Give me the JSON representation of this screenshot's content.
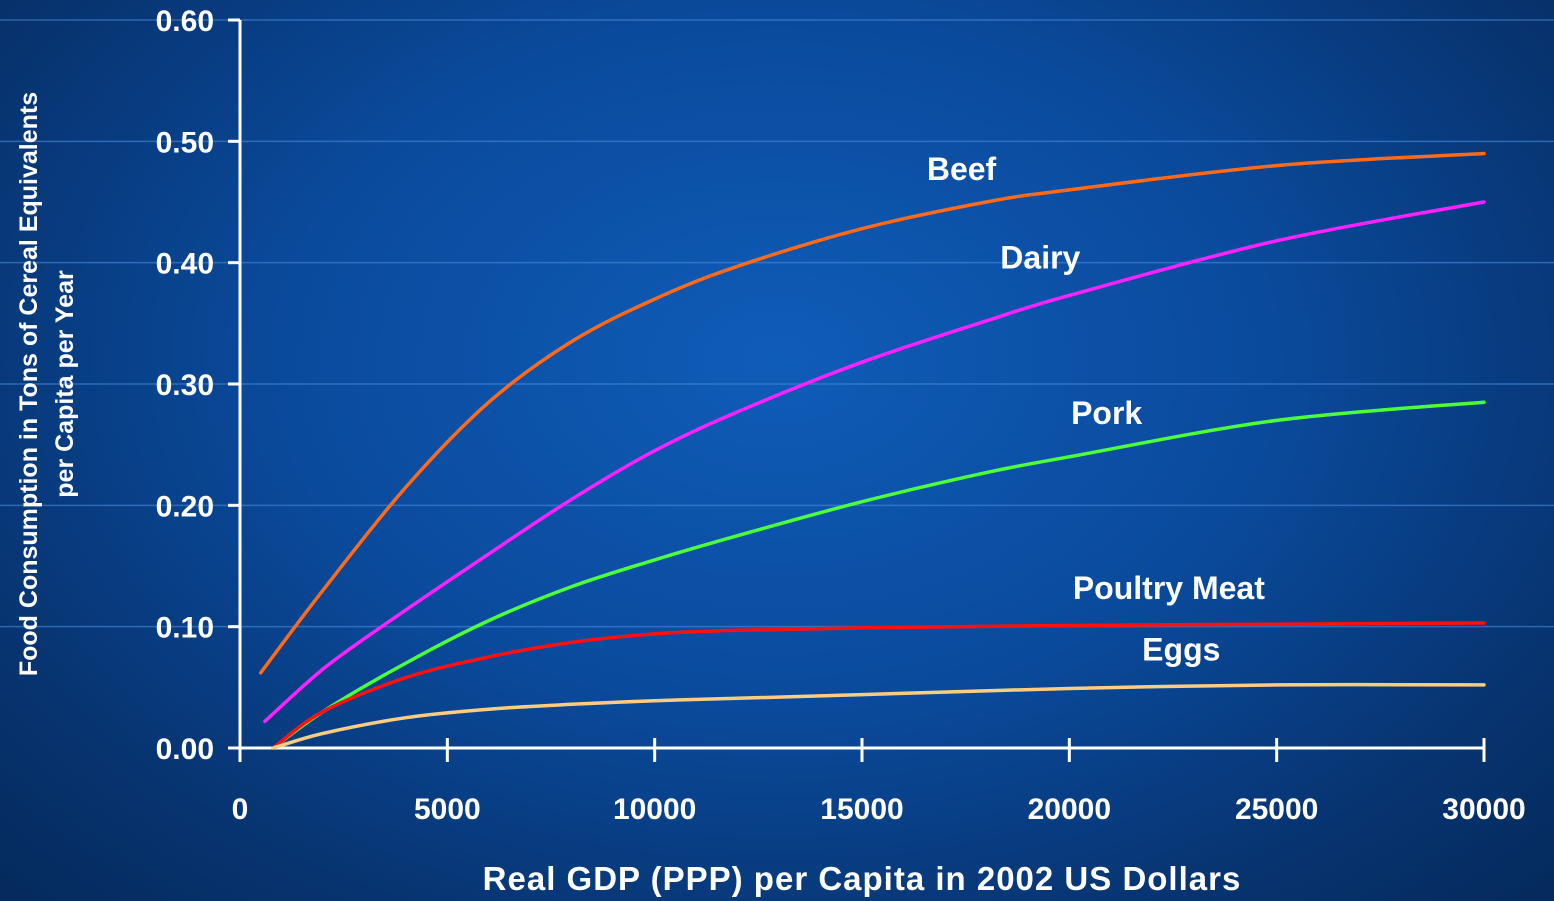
{
  "chart_data": {
    "type": "line",
    "title": "",
    "xlabel": "Real GDP (PPP) per Capita in 2002 US Dollars",
    "ylabel_lines": [
      "Food Consumption in Tons of Cereal Equivalents",
      "per Capita per Year"
    ],
    "xlim": [
      0,
      30000
    ],
    "ylim": [
      0,
      0.6
    ],
    "x_ticks": [
      "0",
      "5000",
      "10000",
      "15000",
      "20000",
      "25000",
      "30000"
    ],
    "y_ticks": [
      "0.00",
      "0.10",
      "0.20",
      "0.30",
      "0.40",
      "0.50",
      "0.60"
    ],
    "grid": "horizontal",
    "legend": "inline labels",
    "series": [
      {
        "name": "Beef",
        "color": "#ff6a1a",
        "x": [
          500,
          2000,
          4000,
          6000,
          8000,
          10000,
          12000,
          15000,
          18000,
          20000,
          25000,
          30000
        ],
        "values": [
          0.062,
          0.13,
          0.215,
          0.285,
          0.335,
          0.37,
          0.397,
          0.428,
          0.45,
          0.46,
          0.48,
          0.49
        ]
      },
      {
        "name": "Dairy",
        "color": "#ff22ff",
        "x": [
          600,
          2000,
          3500,
          6000,
          8000,
          10000,
          12000,
          15000,
          18000,
          20000,
          25000,
          30000
        ],
        "values": [
          0.022,
          0.065,
          0.102,
          0.16,
          0.205,
          0.245,
          0.277,
          0.318,
          0.352,
          0.373,
          0.418,
          0.45
        ]
      },
      {
        "name": "Pork",
        "color": "#4cff3a",
        "x": [
          800,
          2000,
          4000,
          6000,
          8000,
          10000,
          12000,
          15000,
          18000,
          20000,
          25000,
          30000
        ],
        "values": [
          0.0,
          0.03,
          0.07,
          0.105,
          0.133,
          0.155,
          0.175,
          0.203,
          0.227,
          0.24,
          0.27,
          0.285
        ]
      },
      {
        "name": "Poultry Meat",
        "color": "#ff1010",
        "x": [
          800,
          2000,
          4000,
          6000,
          8000,
          10000,
          12000,
          15000,
          20000,
          25000,
          30000
        ],
        "values": [
          0.0,
          0.03,
          0.058,
          0.075,
          0.087,
          0.094,
          0.097,
          0.099,
          0.101,
          0.102,
          0.103
        ]
      },
      {
        "name": "Eggs",
        "color": "#ffcc80",
        "x": [
          800,
          2000,
          4000,
          6000,
          8000,
          10000,
          12000,
          15000,
          20000,
          25000,
          30000
        ],
        "values": [
          0.0,
          0.012,
          0.025,
          0.032,
          0.036,
          0.039,
          0.041,
          0.044,
          0.049,
          0.052,
          0.052
        ]
      }
    ],
    "labels": [
      {
        "text": "Beef",
        "x": 17400,
        "y": 0.468
      },
      {
        "text": "Dairy",
        "x": 19300,
        "y": 0.395
      },
      {
        "text": "Pork",
        "x": 20900,
        "y": 0.267
      },
      {
        "text": "Poultry Meat",
        "x": 22400,
        "y": 0.123
      },
      {
        "text": "Eggs",
        "x": 22700,
        "y": 0.072
      }
    ]
  }
}
